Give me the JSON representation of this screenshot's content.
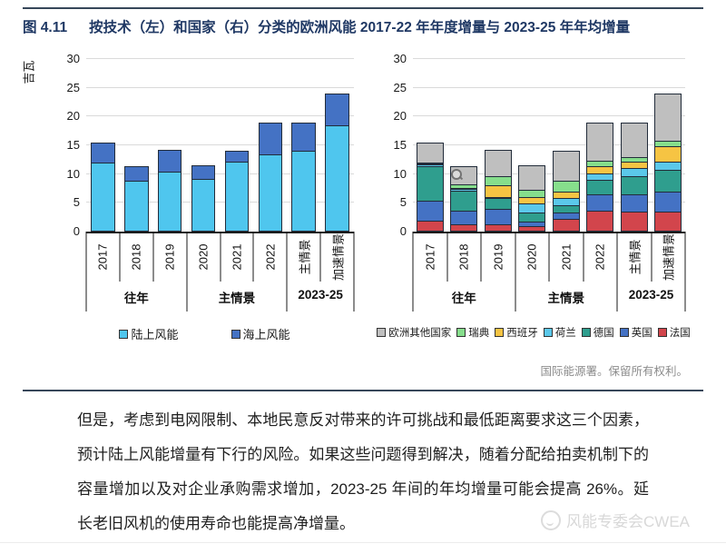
{
  "figure": {
    "label": "图 4.11",
    "title": "按技术（左）和国家（右）分类的欧洲风能 2017-22 年年度增量与 2023-25 年年均增量",
    "attribution": "国际能源署。保留所有权利。"
  },
  "chart_data": [
    {
      "type": "bar",
      "stacked": true,
      "id": "by-technology",
      "unit_label": "吉瓦",
      "ylim": [
        0,
        30
      ],
      "yticks": [
        0,
        5,
        10,
        15,
        20,
        25,
        30
      ],
      "grid": true,
      "categories": [
        "2017",
        "2018",
        "2019",
        "2020",
        "2021",
        "2022",
        "主情景",
        "加速情景"
      ],
      "groups": [
        {
          "label": "往年",
          "from": 0,
          "to": 2
        },
        {
          "label": "主情景",
          "from": 3,
          "to": 5
        },
        {
          "label": "2023-25",
          "from": 6,
          "to": 7
        }
      ],
      "series": [
        {
          "name": "陆上风能",
          "color": "#4fc6ee",
          "values": [
            12.0,
            8.8,
            10.5,
            9.2,
            12.2,
            13.5,
            14.0,
            18.4
          ]
        },
        {
          "name": "海上风能",
          "color": "#4472c4",
          "values": [
            3.4,
            2.6,
            3.7,
            2.4,
            1.9,
            5.4,
            5.0,
            5.6
          ]
        }
      ],
      "legend_order": [
        "陆上风能",
        "海上风能"
      ],
      "legend_position": "bottom"
    },
    {
      "type": "bar",
      "stacked": true,
      "id": "by-country",
      "unit_label": "",
      "ylim": [
        0,
        30
      ],
      "yticks": [
        0,
        5,
        10,
        15,
        20,
        25,
        30
      ],
      "grid": true,
      "categories": [
        "2017",
        "2018",
        "2019",
        "2020",
        "2021",
        "2022",
        "主情景",
        "加速情景"
      ],
      "groups": [
        {
          "label": "往年",
          "from": 0,
          "to": 2
        },
        {
          "label": "主情景",
          "from": 3,
          "to": 5
        },
        {
          "label": "2023-25",
          "from": 6,
          "to": 7
        }
      ],
      "series": [
        {
          "name": "法国",
          "color": "#d2454c",
          "values": [
            1.9,
            1.3,
            1.3,
            0.9,
            2.2,
            3.7,
            3.5,
            3.4
          ]
        },
        {
          "name": "英国",
          "color": "#4472c4",
          "values": [
            3.4,
            2.3,
            2.6,
            0.9,
            1.1,
            2.8,
            3.0,
            3.6
          ]
        },
        {
          "name": "德国",
          "color": "#2f9e8e",
          "values": [
            6.1,
            3.5,
            1.9,
            1.6,
            1.3,
            2.5,
            3.2,
            3.8
          ]
        },
        {
          "name": "荷兰",
          "color": "#5bc8ea",
          "values": [
            0.3,
            0.3,
            0.2,
            1.5,
            1.3,
            1.1,
            1.4,
            1.4
          ]
        },
        {
          "name": "西班牙",
          "color": "#f6c443",
          "values": [
            0.1,
            0.2,
            2.1,
            1.1,
            1.1,
            1.2,
            1.1,
            2.6
          ]
        },
        {
          "name": "瑞典",
          "color": "#86de8c",
          "values": [
            0.1,
            0.6,
            1.5,
            1.2,
            1.8,
            1.0,
            0.8,
            1.0
          ]
        },
        {
          "name": "欧洲其他国家",
          "color": "#bfbfbf",
          "values": [
            3.5,
            3.1,
            4.6,
            4.4,
            5.3,
            6.6,
            6.0,
            8.2
          ]
        }
      ],
      "legend_order": [
        "欧洲其他国家",
        "瑞典",
        "西班牙",
        "荷兰",
        "德国",
        "英国",
        "法国"
      ],
      "legend_position": "bottom"
    }
  ],
  "article": {
    "paragraph": "但是，考虑到电网限制、本地民意反对带来的许可挑战和最低距离要求这三个因素，预计陆上风能增量有下行的风险。如果这些问题得到解决，随着分配给拍卖机制下的容量增加以及对企业承购需求增加，2023-25 年间的年均增量可能会提高 26%。延长老旧风机的使用寿命也能提高净增量。"
  },
  "watermark": {
    "text": "风能专委会CWEA",
    "logo_icon": "cwea-circle-logo"
  },
  "icons": {
    "cursor_artifact": "magnifier-cursor"
  },
  "colors": {
    "title_navy": "#1F3864",
    "rule": "#37475a",
    "gridline": "#dadada",
    "bar_border": "#222c3a",
    "attribution_gray": "#8c8c8c",
    "watermark_gray": "#d8d8d8"
  }
}
